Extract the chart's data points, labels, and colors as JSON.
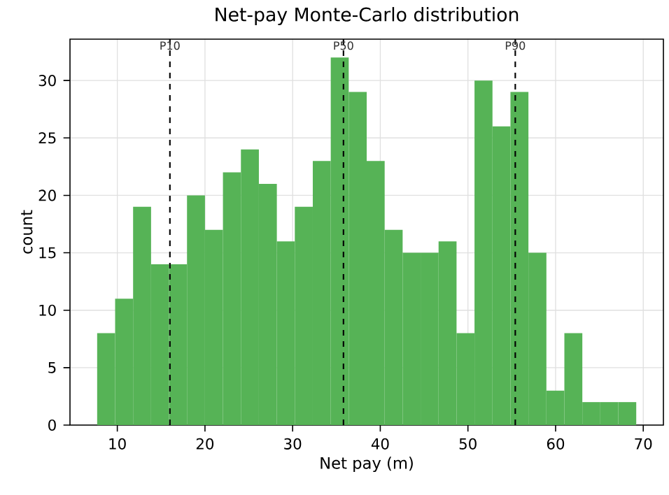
{
  "chart_data": {
    "type": "histogram",
    "title": "Net-pay Monte-Carlo distribution",
    "xlabel": "Net pay (m)",
    "ylabel": "count",
    "bins": [
      7.7,
      9.75,
      11.8,
      13.85,
      15.9,
      17.95,
      20.0,
      22.05,
      24.1,
      26.15,
      28.2,
      30.25,
      32.3,
      34.35,
      36.4,
      38.45,
      40.5,
      42.55,
      44.6,
      46.65,
      48.7,
      50.75,
      52.8,
      54.85,
      56.9,
      58.95,
      61.0,
      63.05,
      65.1,
      67.15,
      69.2
    ],
    "values": [
      8,
      11,
      19,
      14,
      14,
      20,
      17,
      22,
      24,
      21,
      16,
      19,
      23,
      32,
      29,
      23,
      17,
      15,
      15,
      16,
      8,
      30,
      26,
      29,
      15,
      3,
      8,
      2,
      2,
      2
    ],
    "color": "#56b356",
    "xlim": [
      4.6,
      72.3
    ],
    "ylim": [
      0,
      33.6
    ],
    "xticks": [
      10,
      20,
      30,
      40,
      50,
      60,
      70
    ],
    "yticks": [
      0,
      5,
      10,
      15,
      20,
      25,
      30
    ],
    "grid": true,
    "ref_lines": [
      {
        "axis": "x",
        "value": 16.0,
        "label": "P10",
        "color": "#000000",
        "line_style": "dashed"
      },
      {
        "axis": "x",
        "value": 35.8,
        "label": "P50",
        "color": "#000000",
        "line_style": "dashed"
      },
      {
        "axis": "x",
        "value": 55.4,
        "label": "P90",
        "color": "#000000",
        "line_style": "dashed"
      }
    ]
  }
}
